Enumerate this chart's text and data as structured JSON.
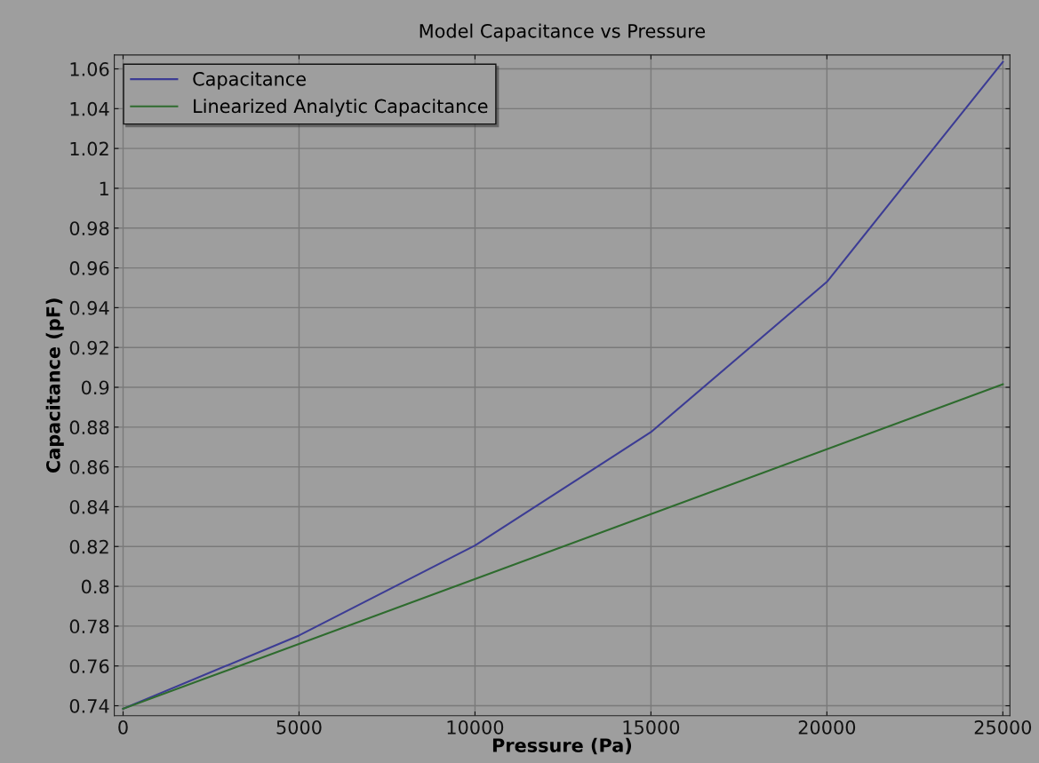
{
  "chart_data": {
    "type": "line",
    "title": "Model Capacitance vs Pressure",
    "xlabel": "Pressure (Pa)",
    "ylabel": "Capacitance (pF)",
    "x": [
      0,
      5000,
      10000,
      15000,
      20000,
      25000
    ],
    "series": [
      {
        "name": "Capacitance",
        "color": "#3c3c94",
        "values": [
          0.7385,
          0.7753,
          0.8205,
          0.8775,
          0.953,
          1.0635
        ]
      },
      {
        "name": "Linearized Analytic Capacitance",
        "color": "#2e6b2e",
        "x": [
          0,
          25000
        ],
        "values": [
          0.7385,
          0.9015
        ]
      }
    ],
    "xlim": [
      -250,
      25200
    ],
    "xticks": [
      0,
      5000,
      10000,
      15000,
      20000,
      25000
    ],
    "ylim": [
      0.735,
      1.067
    ],
    "yticks": [
      0.74,
      0.76,
      0.78,
      0.8,
      0.82,
      0.84,
      0.86,
      0.88,
      0.9,
      0.92,
      0.94,
      0.96,
      0.98,
      1,
      1.02,
      1.04,
      1.06
    ],
    "grid": true,
    "legend": "top left",
    "marker": "none",
    "line_style": "solid"
  }
}
